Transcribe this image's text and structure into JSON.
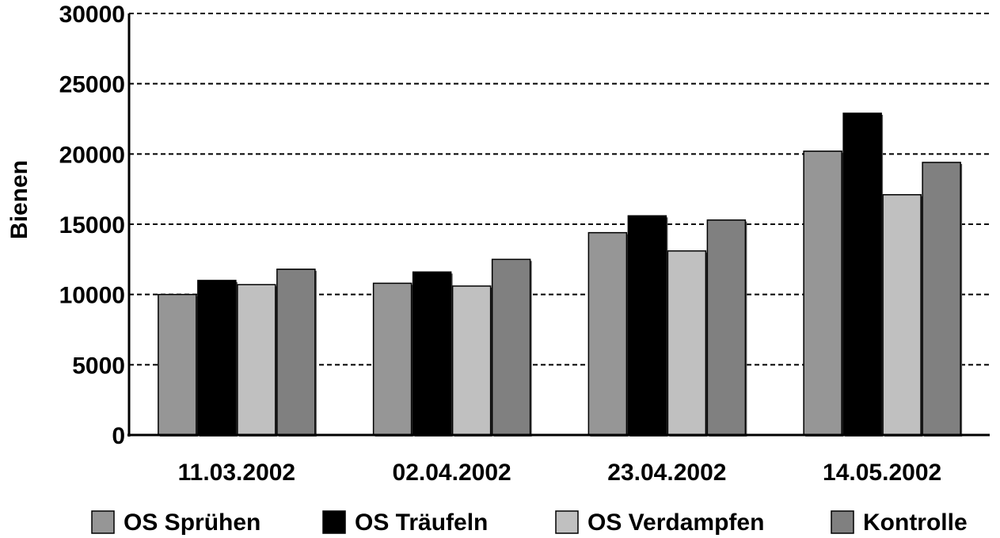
{
  "chart_data": {
    "type": "bar",
    "y_label": "Bienen",
    "categories": [
      "11.03.2002",
      "02.04.2002",
      "23.04.2002",
      "14.05.2002"
    ],
    "series": [
      {
        "name": "OS Sprühen",
        "color": "#969696",
        "values": [
          10000,
          10800,
          14400,
          20200
        ]
      },
      {
        "name": "OS Träufeln",
        "color": "#000000",
        "values": [
          11000,
          11600,
          15600,
          22900
        ]
      },
      {
        "name": "OS Verdampfen",
        "color": "#c0c0c0",
        "values": [
          10700,
          10600,
          13100,
          17100
        ]
      },
      {
        "name": "Kontrolle",
        "color": "#808080",
        "values": [
          11800,
          12500,
          15300,
          19400
        ]
      }
    ],
    "ylim": [
      0,
      30000
    ],
    "yticks": [
      0,
      5000,
      10000,
      15000,
      20000,
      25000,
      30000
    ],
    "grid": true,
    "legend": "bottom"
  }
}
